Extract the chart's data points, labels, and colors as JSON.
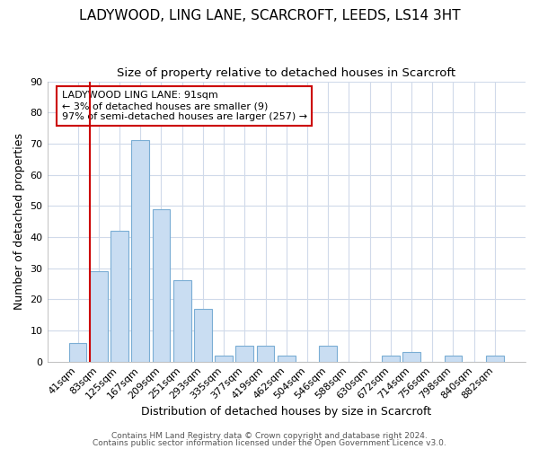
{
  "title1": "LADYWOOD, LING LANE, SCARCROFT, LEEDS, LS14 3HT",
  "title2": "Size of property relative to detached houses in Scarcroft",
  "xlabel": "Distribution of detached houses by size in Scarcroft",
  "ylabel": "Number of detached properties",
  "bar_labels": [
    "41sqm",
    "83sqm",
    "125sqm",
    "167sqm",
    "209sqm",
    "251sqm",
    "293sqm",
    "335sqm",
    "377sqm",
    "419sqm",
    "462sqm",
    "504sqm",
    "546sqm",
    "588sqm",
    "630sqm",
    "672sqm",
    "714sqm",
    "756sqm",
    "798sqm",
    "840sqm",
    "882sqm"
  ],
  "bar_values": [
    6,
    29,
    42,
    71,
    49,
    26,
    17,
    2,
    5,
    5,
    2,
    0,
    5,
    0,
    0,
    2,
    3,
    0,
    2,
    0,
    2
  ],
  "bar_color": "#c9ddf2",
  "bar_edge_color": "#7aadd4",
  "background_color": "#ffffff",
  "grid_color": "#d0daea",
  "annotation_text": "LADYWOOD LING LANE: 91sqm\n← 3% of detached houses are smaller (9)\n97% of semi-detached houses are larger (257) →",
  "annotation_box_color": "#ffffff",
  "annotation_box_edge_color": "#cc0000",
  "vline_color": "#cc0000",
  "ylim": [
    0,
    90
  ],
  "yticks": [
    0,
    10,
    20,
    30,
    40,
    50,
    60,
    70,
    80,
    90
  ],
  "footer1": "Contains HM Land Registry data © Crown copyright and database right 2024.",
  "footer2": "Contains public sector information licensed under the Open Government Licence v3.0.",
  "title1_fontsize": 11,
  "title2_fontsize": 9.5,
  "xlabel_fontsize": 9,
  "ylabel_fontsize": 9,
  "tick_fontsize": 8,
  "annotation_fontsize": 8,
  "footer_fontsize": 6.5
}
